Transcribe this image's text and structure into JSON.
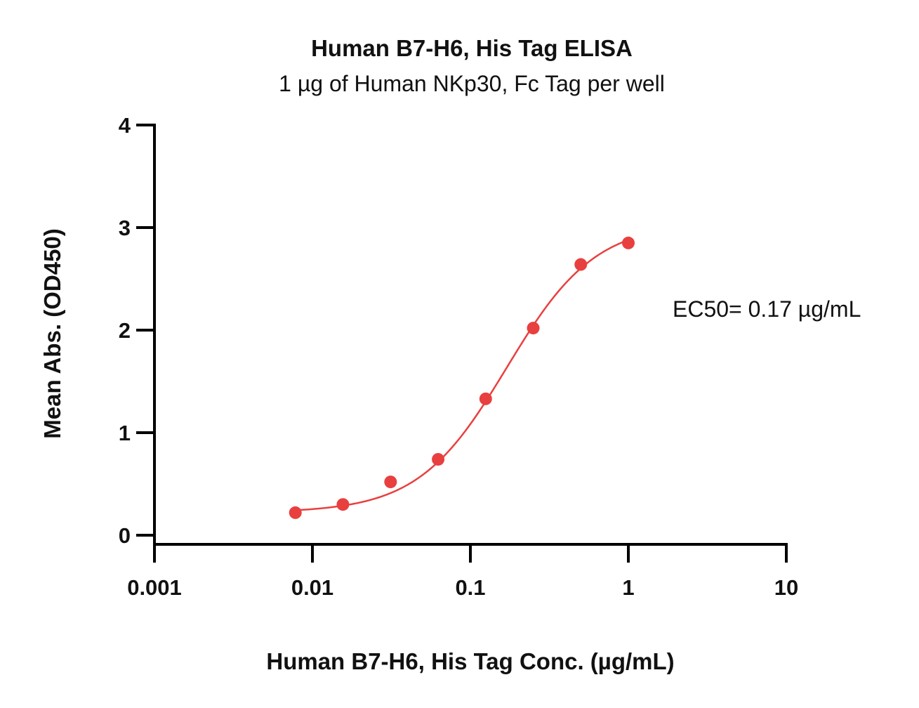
{
  "chart_data": {
    "type": "scatter",
    "title": "Human B7-H6, His Tag ELISA",
    "subtitle": "1 µg of Human NKp30, Fc Tag per well",
    "xlabel": "Human B7-H6, His Tag Conc. (µg/mL)",
    "ylabel": "Mean Abs. (OD450)",
    "xscale": "log",
    "xlim": [
      0.001,
      10
    ],
    "ylim": [
      0,
      4
    ],
    "xticks": [
      0.001,
      0.01,
      0.1,
      1,
      10
    ],
    "xtick_labels": [
      "0.001",
      "0.01",
      "0.1",
      "1",
      "10"
    ],
    "yticks": [
      0,
      1,
      2,
      3,
      4
    ],
    "ytick_labels": [
      "0",
      "1",
      "2",
      "3",
      "4"
    ],
    "grid": false,
    "series": [
      {
        "color": "#e8403f",
        "x": [
          0.0078,
          0.0156,
          0.03125,
          0.0625,
          0.125,
          0.25,
          0.5,
          1
        ],
        "y": [
          0.22,
          0.3,
          0.52,
          0.74,
          1.33,
          2.02,
          2.64,
          2.85
        ],
        "fit": "4PL",
        "fit_params": {
          "bottom": 0.22,
          "top": 3.05,
          "ec50": 0.17,
          "hill": 1.55
        }
      }
    ],
    "annotations": [
      {
        "text": "EC50= 0.17 µg/mL",
        "placement": "right"
      }
    ]
  }
}
